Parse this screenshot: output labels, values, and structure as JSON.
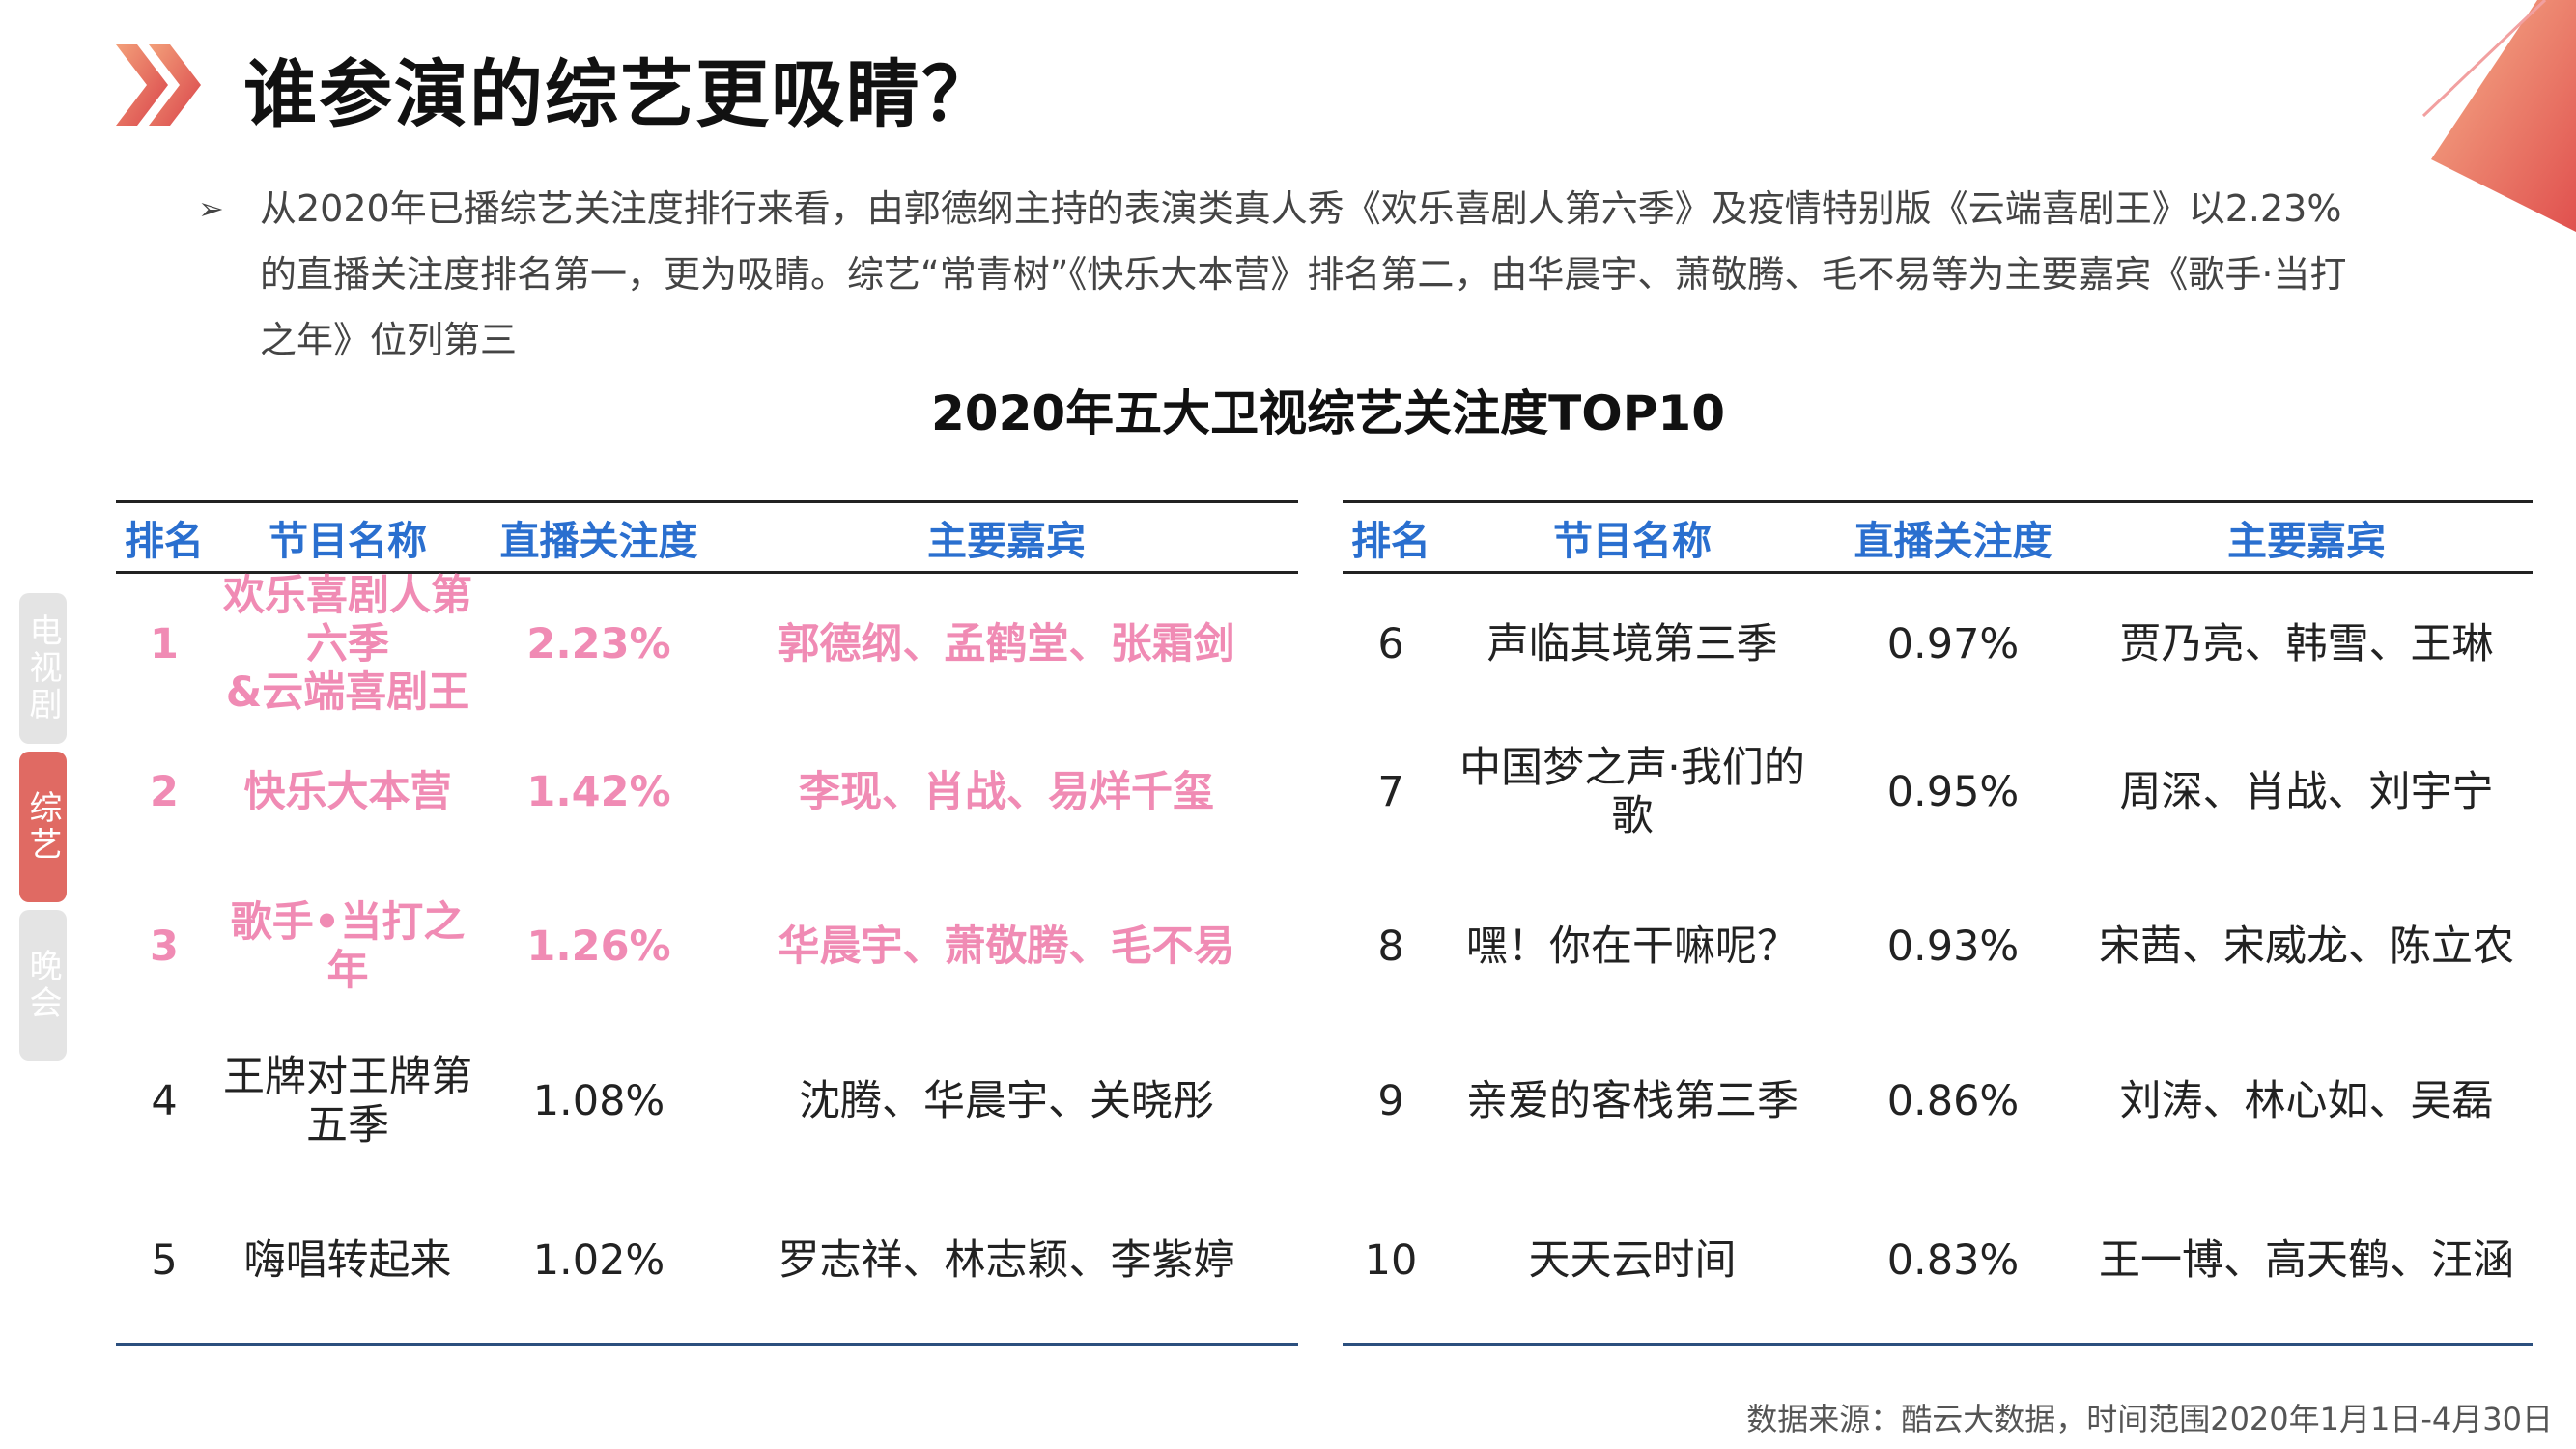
{
  "header": {
    "title": "谁参演的综艺更吸睛？"
  },
  "bullet": {
    "mark": "➢",
    "text": "从2020年已播综艺关注度排行来看，由郭德纲主持的表演类真人秀《欢乐喜剧人第六季》及疫情特别版《云端喜剧王》以2.23%的直播关注度排名第一，更为吸睛。综艺“常青树”《快乐大本营》排名第二，由华晨宇、萧敬腾、毛不易等为主要嘉宾《歌手·当打之年》位列第三"
  },
  "table": {
    "title": "2020年五大卫视综艺关注度TOP10",
    "headers": [
      "排名",
      "节目名称",
      "直播关注度",
      "主要嘉宾"
    ],
    "left_rows": [
      {
        "rank": "1",
        "name": "欢乐喜剧人第六季",
        "name2": "&云端喜剧王",
        "rate": "2.23%",
        "guests": "郭德纲、孟鹤堂、张霜剑"
      },
      {
        "rank": "2",
        "name": "快乐大本营",
        "name2": "",
        "rate": "1.42%",
        "guests": "李现、肖战、易烊千玺"
      },
      {
        "rank": "3",
        "name": "歌手•当打之年",
        "name2": "",
        "rate": "1.26%",
        "guests": "华晨宇、萧敬腾、毛不易"
      },
      {
        "rank": "4",
        "name": "王牌对王牌第五季",
        "name2": "",
        "rate": "1.08%",
        "guests": "沈腾、华晨宇、关晓彤"
      },
      {
        "rank": "5",
        "name": "嗨唱转起来",
        "name2": "",
        "rate": "1.02%",
        "guests": "罗志祥、林志颖、李紫婷"
      }
    ],
    "right_rows": [
      {
        "rank": "6",
        "name": "声临其境第三季",
        "rate": "0.97%",
        "guests": "贾乃亮、韩雪、王琳"
      },
      {
        "rank": "7",
        "name": "中国梦之声·我们的歌",
        "rate": "0.95%",
        "guests": "周深、肖战、刘宇宁"
      },
      {
        "rank": "8",
        "name": "嘿！你在干嘛呢？",
        "rate": "0.93%",
        "guests": "宋茜、宋威龙、陈立农"
      },
      {
        "rank": "9",
        "name": "亲爱的客栈第三季",
        "rate": "0.86%",
        "guests": "刘涛、林心如、吴磊"
      },
      {
        "rank": "10",
        "name": "天天云时间",
        "rate": "0.83%",
        "guests": "王一博、高天鹤、汪涵"
      }
    ]
  },
  "side_tabs": [
    {
      "label": "电视剧",
      "active": false
    },
    {
      "label": "综艺",
      "active": true
    },
    {
      "label": "晚会",
      "active": false
    }
  ],
  "source": "数据来源：酷云大数据，时间范围2020年1月1日-4月30日",
  "colors": {
    "header_blue": "#2a6fcf",
    "highlight_pink": "#f08bb4",
    "active_tab": "#e06a63",
    "inactive_tab": "#e4e4e4"
  }
}
